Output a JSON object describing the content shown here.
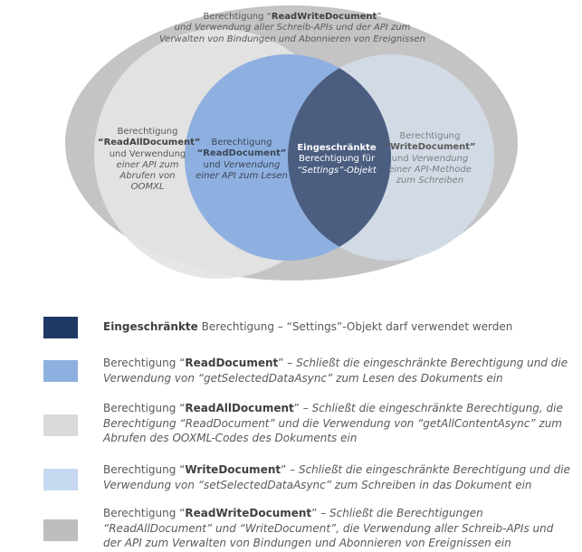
{
  "colors": {
    "outer_ellipse": "#c4c4c4",
    "readall_circle": "#e4e4e4",
    "write_circle": "#d2dbe8",
    "read_circle": "#8eb0e0",
    "overlap": "#4b5e80",
    "legend_restricted": "#1f3864",
    "legend_read": "#8eb0e0",
    "legend_readall": "#dadada",
    "legend_write": "#c6d9f1",
    "legend_readwrite": "#bdbdbd"
  },
  "diagram": {
    "outer": {
      "prefix": "Berechtigung “",
      "name": "ReadWriteDocument",
      "suffix": "”",
      "line2": "und Verwendung aller Schreib-APIs und der API zum",
      "line3": "Verwalten von Bindungen und Abonnieren von Ereignissen"
    },
    "readall": {
      "line1": "Berechtigung",
      "name": "“ReadAllDocument”",
      "line3": "und Verwendung",
      "line4": "einer API zum",
      "line5": "Abrufen von",
      "line6": "OOMXL"
    },
    "read": {
      "line1": "Berechtigung",
      "name": "“ReadDocument”",
      "line3_plain": "und ",
      "line3_italic": "Verwendung",
      "line4": "einer API zum Lesen"
    },
    "restricted": {
      "line1": "Eingeschränkte",
      "line2": "Berechtigung für",
      "line3": "“Settings”-Objekt"
    },
    "write": {
      "line1": "Berechtigung",
      "name": "“WriteDocument”",
      "line3_plain": "und ",
      "line3_italic": "Verwendung",
      "line4": "einer API-Methode",
      "line5": "zum Schreiben"
    }
  },
  "legend": [
    {
      "bold": "Eingeschränkte",
      "text": " Berechtigung – “Settings”-Objekt darf verwendet werden"
    },
    {
      "prefix": "Berechtigung “",
      "bold": "ReadDocument",
      "mid": "” – ",
      "italic": "Schließt die eingeschränkte Berechtigung und die Verwendung von “getSelectedDataAsync” zum Lesen des Dokuments ein"
    },
    {
      "prefix": "Berechtigung “",
      "bold": "ReadAllDocument",
      "mid": "” – ",
      "italic": "Schließt die eingeschränkte Berechtigung, die Berechtigung “ReadDocument” und die Verwendung von “getAllContentAsync” zum Abrufen des OOXML-Codes des Dokuments ein"
    },
    {
      "prefix": "Berechtigung “",
      "bold": "WriteDocument",
      "mid": "” – ",
      "italic": "Schließt die eingeschränkte Berechtigung und die Verwendung von “setSelectedDataAsync” zum Schreiben in das Dokument ein"
    },
    {
      "prefix": "Berechtigung “",
      "bold": "ReadWriteDocument",
      "mid": "” – ",
      "italic": "Schließt die Berechtigungen “ReadAllDocument” und “WriteDocument”, die Verwendung aller Schreib-APIs und der API zum Verwalten von Bindungen und Abonnieren von Ereignissen ein"
    }
  ]
}
